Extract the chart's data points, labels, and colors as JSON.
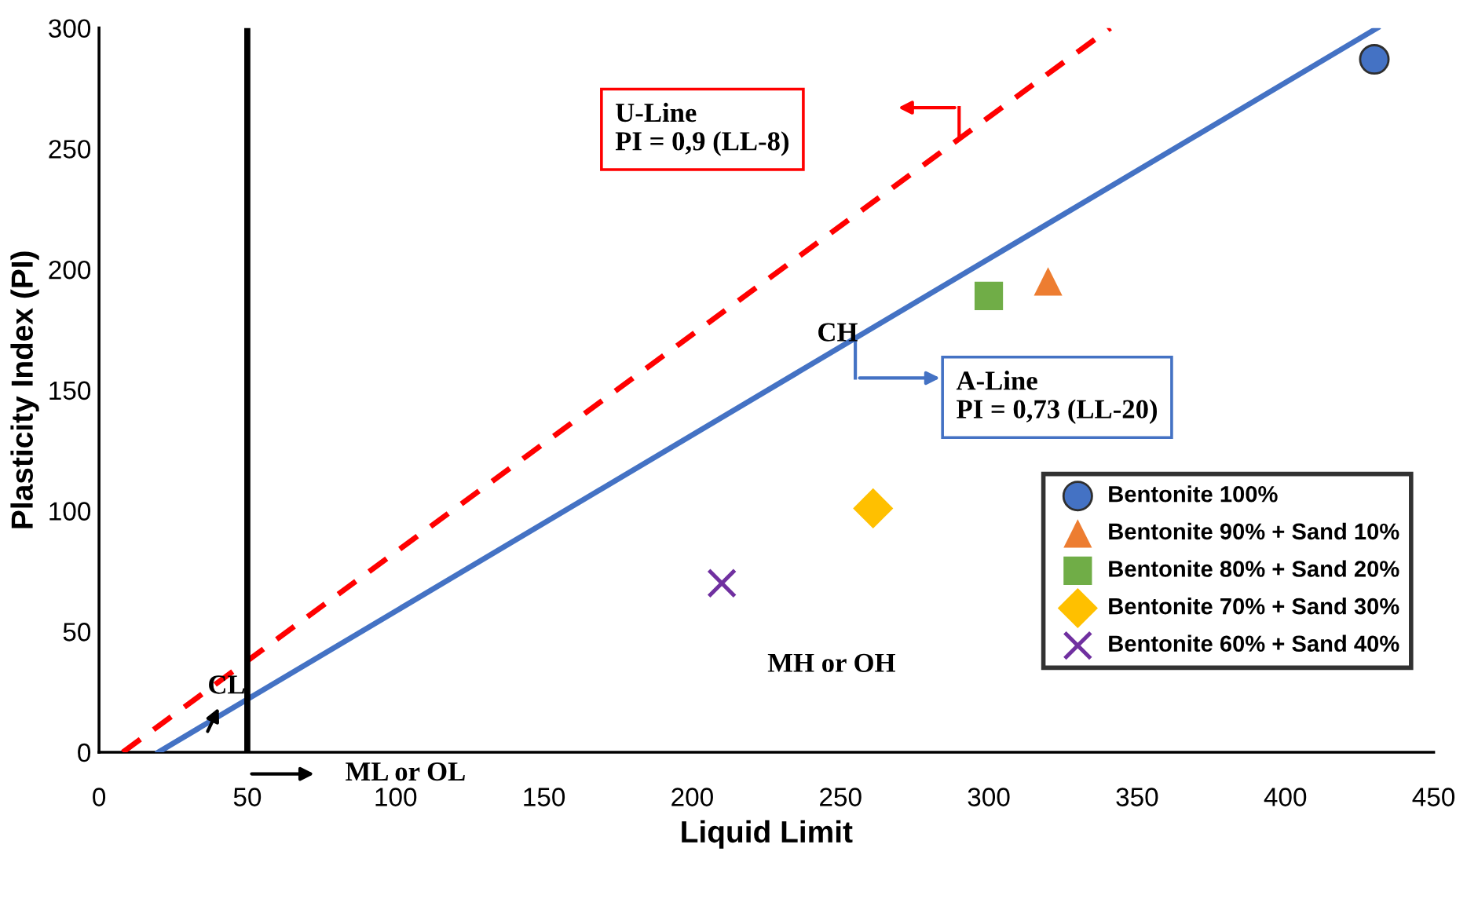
{
  "chart_data": {
    "type": "scatter",
    "xlabel": "Liquid Limit",
    "ylabel": "Plasticity Index (PI)",
    "xlim": [
      0,
      450
    ],
    "ylim": [
      0,
      300
    ],
    "xticks": [
      0,
      50,
      100,
      150,
      200,
      250,
      300,
      350,
      400,
      450
    ],
    "yticks": [
      0,
      50,
      100,
      150,
      200,
      250,
      300
    ],
    "grid": false,
    "legend": "right",
    "series": [
      {
        "name": "Bentonite 100%",
        "color": "#4472c4",
        "marker": "circle",
        "x": [
          430
        ],
        "values": [
          287
        ]
      },
      {
        "name": "Bentonite 90% + Sand 10%",
        "color": "#ed7d31",
        "marker": "triangle",
        "x": [
          320
        ],
        "values": [
          195
        ]
      },
      {
        "name": "Bentonite 80% + Sand 20%",
        "color": "#70ad47",
        "marker": "square",
        "x": [
          300
        ],
        "values": [
          189
        ]
      },
      {
        "name": "Bentonite 70% + Sand 30%",
        "color": "#ffc000",
        "marker": "diamond",
        "x": [
          261
        ],
        "values": [
          101
        ]
      },
      {
        "name": "Bentonite 60% + Sand 40%",
        "color": "#7030a0",
        "marker": "cross",
        "x": [
          210
        ],
        "values": [
          70
        ]
      },
      {
        "type": "line",
        "color": "#4472c4",
        "line_style": "solid",
        "marker": "none",
        "x": [
          20,
          431
        ],
        "values": [
          0,
          300
        ]
      },
      {
        "type": "line",
        "color": "#ff0000",
        "line_style": "dashed",
        "marker": "none",
        "x": [
          8,
          341
        ],
        "values": [
          0,
          300
        ]
      }
    ],
    "ref_lines": [
      {
        "axis": "x",
        "value": 50,
        "color": "#000000"
      }
    ],
    "annotations": [
      "U-Line\nPI = 0,9 (LL-8)",
      "A-Line\nPI = 0,73 (LL-20)",
      "CH",
      "CL",
      "MH or OH",
      "ML or OL"
    ]
  }
}
